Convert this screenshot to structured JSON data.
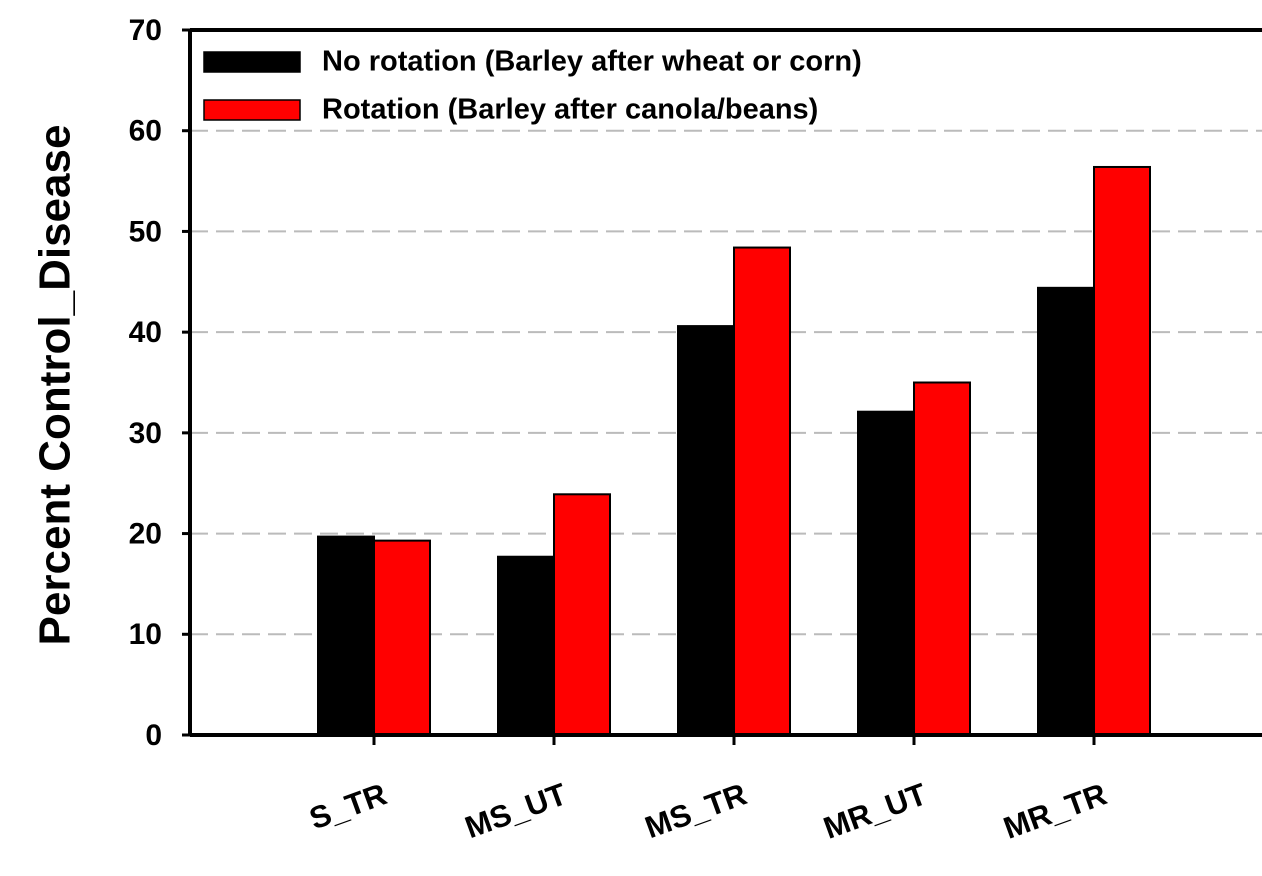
{
  "chart_data": {
    "type": "bar",
    "y_label": "Percent Control_Disease",
    "categories": [
      "S_TR",
      "MS_UT",
      "MS_TR",
      "MR_UT",
      "MR_TR"
    ],
    "series": [
      {
        "name": "No rotation (Barley after wheat or corn)",
        "color": "#000000",
        "values": [
          19.7,
          17.7,
          40.6,
          32.1,
          44.4
        ]
      },
      {
        "name": "Rotation (Barley after canola/beans)",
        "color": "#ff0000",
        "values": [
          19.3,
          23.9,
          48.4,
          35.0,
          56.4
        ]
      }
    ],
    "ylim": [
      0,
      70
    ],
    "yticks": [
      0,
      10,
      20,
      30,
      40,
      50,
      60,
      70
    ],
    "grid": true,
    "legend": "upper left"
  }
}
